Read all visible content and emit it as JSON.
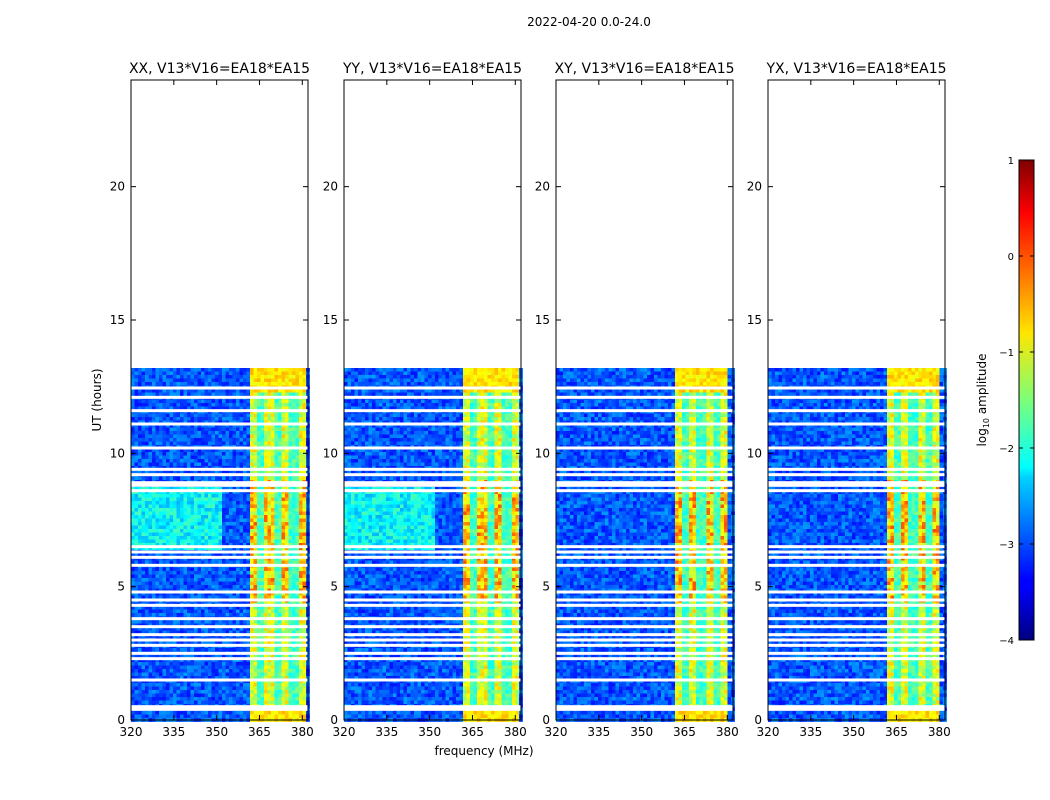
{
  "chart_data": {
    "type": "heatmap",
    "title": "2022-04-20 0.0-24.0",
    "xlabel": "frequency (MHz)",
    "ylabel": "UT (hours)",
    "xlim": [
      320,
      382
    ],
    "ylim": [
      0,
      24
    ],
    "x_ticks": [
      "320",
      "335",
      "350",
      "365",
      "380"
    ],
    "y_ticks": [
      "0",
      "5",
      "10",
      "15",
      "20"
    ],
    "x_tick_values": [
      320,
      335,
      350,
      365,
      380
    ],
    "y_tick_values": [
      0,
      5,
      10,
      15,
      20
    ],
    "data_extent_hours": [
      0,
      13.2
    ],
    "panels": [
      {
        "title": "XX, V13*V16=EA18*EA15",
        "high_band": [
          360.5,
          381
        ],
        "low_freq_enhancement": true
      },
      {
        "title": "YY, V13*V16=EA18*EA15",
        "high_band": [
          360.5,
          380.5
        ],
        "low_freq_enhancement": true
      },
      {
        "title": "XY, V13*V16=EA18*EA15",
        "high_band": [
          360.5,
          380
        ],
        "low_freq_enhancement": false
      },
      {
        "title": "YX, V13*V16=EA18*EA15",
        "high_band": [
          360.5,
          380
        ],
        "low_freq_enhancement": false
      }
    ],
    "flagged_hours": [
      12.45,
      12.1,
      11.6,
      11.1,
      10.2,
      9.4,
      9.2,
      8.9,
      8.8,
      8.6,
      6.5,
      6.3,
      6.1,
      5.8,
      4.8,
      4.5,
      4.3,
      3.8,
      3.5,
      3.2,
      3.0,
      2.8,
      2.5,
      2.3,
      1.5,
      0.5,
      0.4
    ],
    "colorbar": {
      "label": "log",
      "label_sub": "10",
      "label_rest": " amplitude",
      "ticks": [
        "1",
        "0",
        "−1",
        "−2",
        "−3",
        "−4"
      ],
      "tick_values": [
        1,
        0,
        -1,
        -2,
        -3,
        -4
      ],
      "range": [
        -4,
        1
      ],
      "colormap": "jet"
    }
  }
}
